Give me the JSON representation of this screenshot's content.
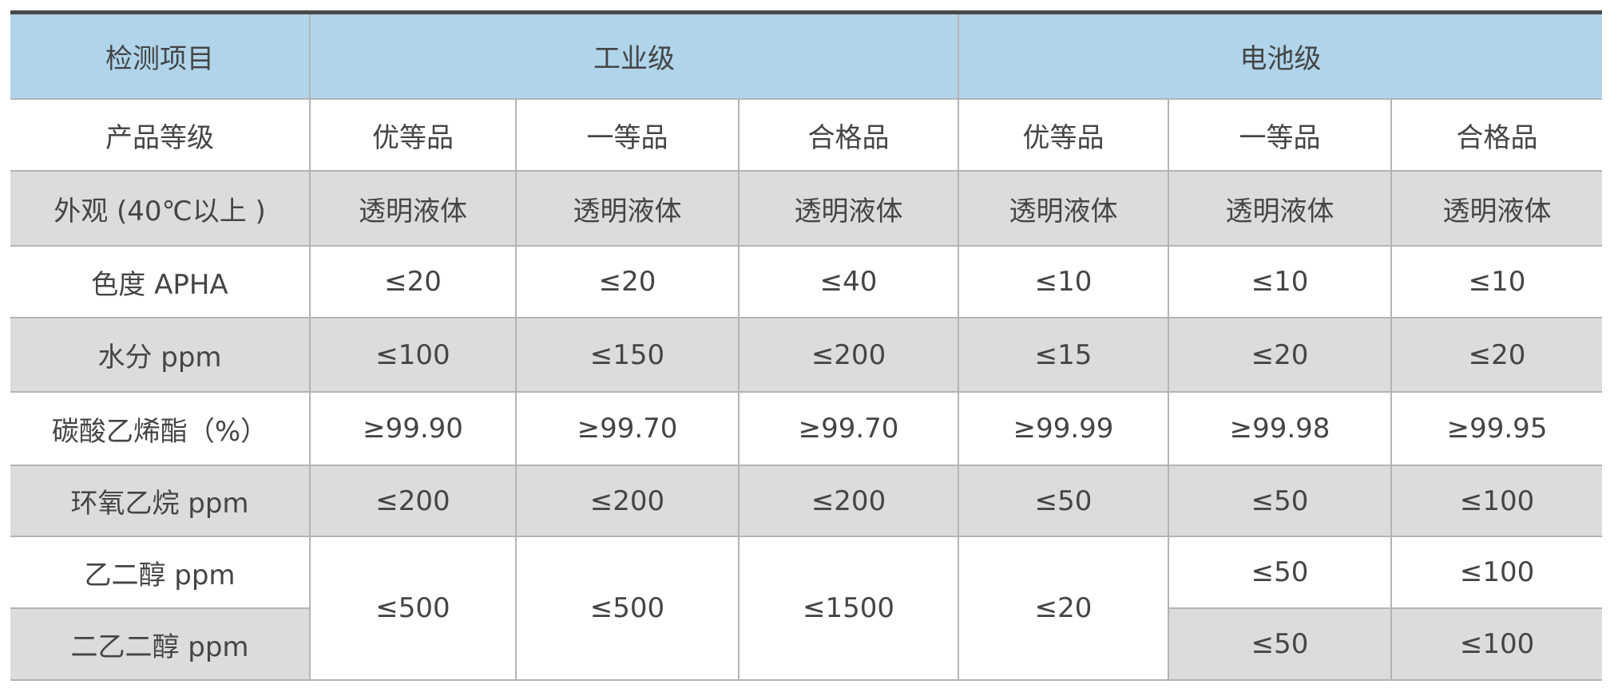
{
  "header": {
    "item": "检测项目",
    "industrial": "工业级",
    "battery": "电池级"
  },
  "grades": {
    "label": "产品等级",
    "values": [
      "优等品",
      "一等品",
      "合格品",
      "优等品",
      "一等品",
      "合格品"
    ]
  },
  "rows": [
    {
      "label": "外观 (40℃以上 )",
      "values": [
        "透明液体",
        "透明液体",
        "透明液体",
        "透明液体",
        "透明液体",
        "透明液体"
      ]
    },
    {
      "label": "色度 APHA",
      "values": [
        "≤20",
        "≤20",
        "≤40",
        "≤10",
        "≤10",
        "≤10"
      ]
    },
    {
      "label": "水分 ppm",
      "values": [
        "≤100",
        "≤150",
        "≤200",
        "≤15",
        "≤20",
        "≤20"
      ]
    },
    {
      "label": "碳酸乙烯酯（%）",
      "values": [
        "≥99.90",
        "≥99.70",
        "≥99.70",
        "≥99.99",
        "≥99.98",
        "≥99.95"
      ]
    },
    {
      "label": "环氧乙烷 ppm",
      "values": [
        "≤200",
        "≤200",
        "≤200",
        "≤50",
        "≤50",
        "≤100"
      ]
    }
  ],
  "glycol": {
    "label_eg": "乙二醇 ppm",
    "label_deg": "二乙二醇 ppm",
    "merged": [
      "≤500",
      "≤500",
      "≤1500",
      "≤20"
    ],
    "eg": [
      "≤50",
      "≤100"
    ],
    "deg": [
      "≤50",
      "≤100"
    ]
  },
  "colors": {
    "header_bg": "#b0d4ea",
    "stripe_bg": "#dcdcdc",
    "text": "#454545",
    "border": "#b4b4b4"
  }
}
